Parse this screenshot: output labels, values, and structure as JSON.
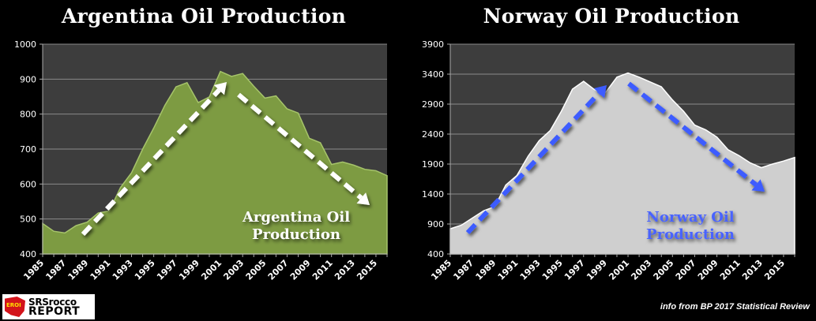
{
  "left_panel": {
    "title": "Argentina Oil Production",
    "inchart_label_line1": "Argentina Oil",
    "inchart_label_line2": "Production"
  },
  "right_panel": {
    "title": "Norway Oil Production",
    "inchart_label_line1": "Norway Oil",
    "inchart_label_line2": "Production"
  },
  "logo": {
    "badge": "EROI",
    "line1": "SRSrocco",
    "line2": "REPORT"
  },
  "source_note": "info from BP 2017 Statistical Review",
  "colors": {
    "background": "#000000",
    "plot_bg": "#3d3d3d",
    "argentina_fill": "#7d9b42",
    "norway_fill": "#cfcfcf",
    "argentina_arrow": "#ffffff",
    "norway_arrow": "#3d5cff",
    "norway_label": "#4a63ff"
  },
  "chart_data": [
    {
      "type": "area",
      "title": "Argentina Oil Production",
      "xlabel": "",
      "ylabel": "",
      "ylim": [
        400,
        1000
      ],
      "yticks": [
        400,
        500,
        600,
        700,
        800,
        900,
        1000
      ],
      "xtick_labels": [
        "1985",
        "1987",
        "1989",
        "1991",
        "1993",
        "1995",
        "1997",
        "1999",
        "2001",
        "2003",
        "2005",
        "2007",
        "2009",
        "2011",
        "2013",
        "2015"
      ],
      "x": [
        1985,
        1986,
        1987,
        1988,
        1989,
        1990,
        1991,
        1992,
        1993,
        1994,
        1995,
        1996,
        1997,
        1998,
        1999,
        2000,
        2001,
        2002,
        2003,
        2004,
        2005,
        2006,
        2007,
        2008,
        2009,
        2010,
        2011,
        2012,
        2013,
        2014,
        2015,
        2016
      ],
      "values": [
        487,
        465,
        460,
        481,
        491,
        517,
        523,
        590,
        632,
        700,
        760,
        825,
        878,
        890,
        833,
        849,
        922,
        908,
        916,
        880,
        846,
        852,
        815,
        803,
        731,
        718,
        656,
        663,
        654,
        642,
        638,
        624
      ],
      "annotations": [
        "Argentina Oil Production",
        "dashed arrow up 1989-2001",
        "dashed arrow down 2002-2015"
      ],
      "grid": true
    },
    {
      "type": "area",
      "title": "Norway Oil Production",
      "xlabel": "",
      "ylabel": "",
      "ylim": [
        400,
        3900
      ],
      "yticks": [
        400,
        900,
        1400,
        1900,
        2400,
        2900,
        3400,
        3900
      ],
      "xtick_labels": [
        "1985",
        "1987",
        "1989",
        "1991",
        "1993",
        "1995",
        "1997",
        "1999",
        "2001",
        "2003",
        "2005",
        "2007",
        "2009",
        "2011",
        "2013",
        "2015"
      ],
      "x": [
        1985,
        1986,
        1987,
        1988,
        1989,
        1990,
        1991,
        1992,
        1993,
        1994,
        1995,
        1996,
        1997,
        1998,
        1999,
        2000,
        2001,
        2002,
        2003,
        2004,
        2005,
        2006,
        2007,
        2008,
        2009,
        2010,
        2011,
        2012,
        2013,
        2014,
        2015,
        2016
      ],
      "values": [
        820,
        880,
        1000,
        1120,
        1190,
        1550,
        1710,
        2030,
        2290,
        2460,
        2780,
        3150,
        3280,
        3140,
        3100,
        3350,
        3420,
        3350,
        3270,
        3190,
        2970,
        2780,
        2550,
        2470,
        2350,
        2140,
        2040,
        1920,
        1840,
        1900,
        1950,
        2010
      ],
      "annotations": [
        "Norway Oil Production",
        "dashed arrow up 1986-1998",
        "dashed arrow down 2001-2013"
      ],
      "grid": true
    }
  ]
}
